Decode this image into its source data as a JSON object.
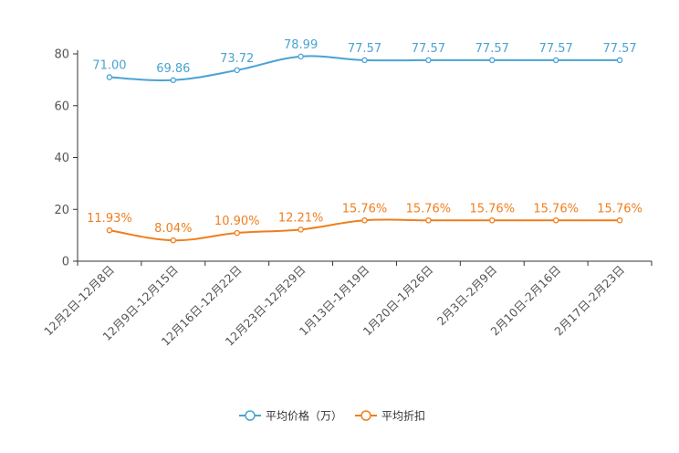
{
  "chart_data": {
    "type": "line",
    "categories": [
      "12月2日-12月8日",
      "12月9日-12月15日",
      "12月16日-12月22日",
      "12月23日-12月29日",
      "1月13日-1月19日",
      "1月20日-1月26日",
      "2月3日-2月9日",
      "2月10日-2月16日",
      "2月17日-2月23日"
    ],
    "series": [
      {
        "name": "平均价格（万）",
        "values": [
          71.0,
          69.86,
          73.72,
          78.99,
          77.57,
          77.57,
          77.57,
          77.57,
          77.57
        ],
        "labels": [
          "71.00",
          "69.86",
          "73.72",
          "78.99",
          "77.57",
          "77.57",
          "77.57",
          "77.57",
          "77.57"
        ],
        "color": "#4aa3d3"
      },
      {
        "name": "平均折扣",
        "values": [
          11.93,
          8.04,
          10.9,
          12.21,
          15.76,
          15.76,
          15.76,
          15.76,
          15.76
        ],
        "labels": [
          "11.93%",
          "8.04%",
          "10.90%",
          "12.21%",
          "15.76%",
          "15.76%",
          "15.76%",
          "15.76%",
          "15.76%"
        ],
        "color": "#f07e1e"
      }
    ],
    "yticks": [
      "0",
      "20",
      "40",
      "60",
      "80"
    ],
    "ylim": [
      0,
      80
    ],
    "title": "",
    "xlabel": "",
    "ylabel": "",
    "legend_position": "bottom-center",
    "grid": false
  }
}
